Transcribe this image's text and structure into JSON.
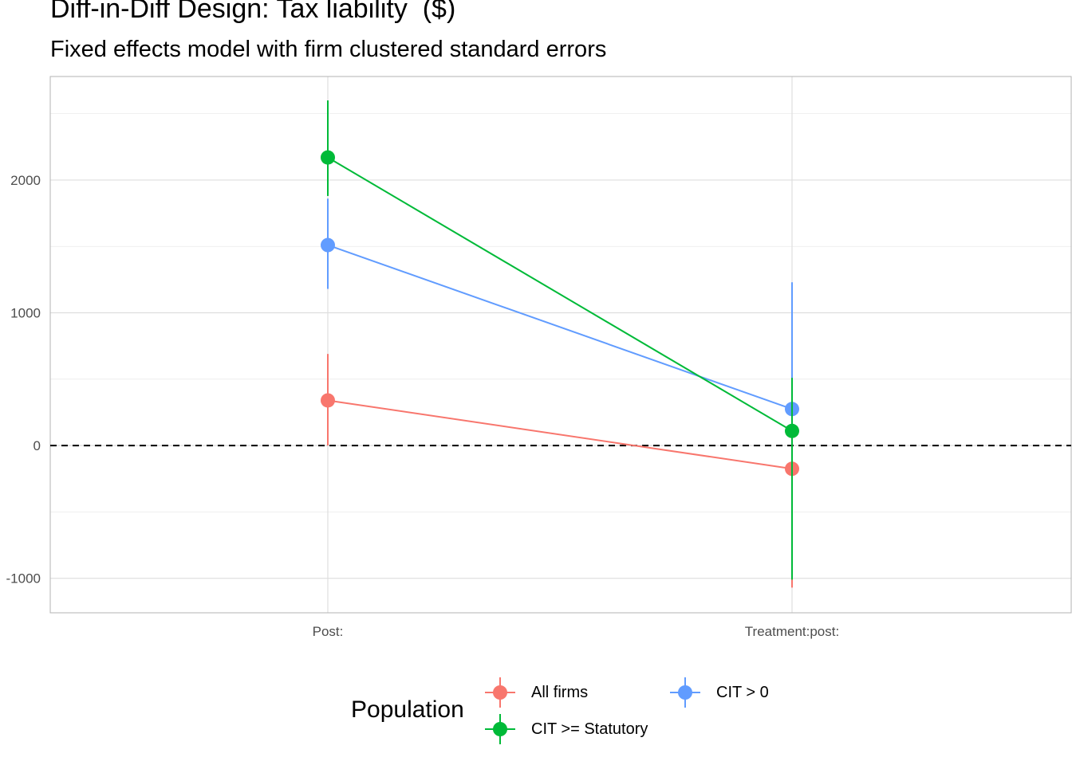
{
  "title": "Diff-in-Diff Design: Tax liability  ($)",
  "subtitle": "Fixed effects model with firm clustered standard errors",
  "chart_data": {
    "type": "line",
    "categories": [
      "Post:",
      "Treatment:post:"
    ],
    "ylim": [
      -1260,
      2780
    ],
    "yticks": [
      -1000,
      0,
      1000,
      2000
    ],
    "ytick_labels": [
      "-1000",
      "0",
      "1000",
      "2000"
    ],
    "reference_line": 0,
    "grid": true,
    "legend_title": "Population",
    "legend_position": "bottom",
    "series": [
      {
        "name": "All firms",
        "color": "#F8766D",
        "values": [
          340,
          -175
        ],
        "lower": [
          0,
          -1070
        ],
        "upper": [
          690,
          720
        ]
      },
      {
        "name": "CIT > 0",
        "color": "#619CFF",
        "values": [
          1510,
          275
        ],
        "lower": [
          1180,
          -670
        ],
        "upper": [
          1860,
          1230
        ]
      },
      {
        "name": "CIT >= Statutory",
        "color": "#00BA38",
        "values": [
          2170,
          110
        ],
        "lower": [
          1880,
          -1010
        ],
        "upper": [
          2600,
          510
        ]
      }
    ]
  }
}
